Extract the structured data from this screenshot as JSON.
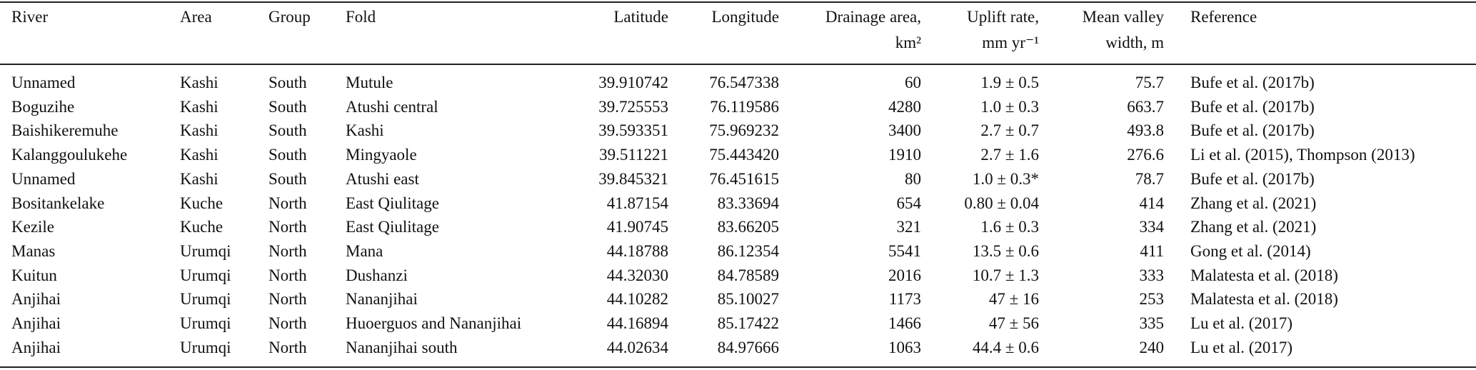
{
  "table": {
    "header": [
      [
        "River"
      ],
      [
        "Area"
      ],
      [
        "Group"
      ],
      [
        "Fold"
      ],
      [
        "Latitude"
      ],
      [
        "Longitude"
      ],
      [
        "Drainage area,",
        "km²"
      ],
      [
        "Uplift rate,",
        "mm yr⁻¹"
      ],
      [
        "Mean valley",
        "width, m"
      ],
      [
        "Reference"
      ]
    ],
    "rows": [
      [
        "Unnamed",
        "Kashi",
        "South",
        "Mutule",
        "39.910742",
        "76.547338",
        "60",
        "1.9 ± 0.5",
        "75.7",
        "Bufe et al. (2017b)"
      ],
      [
        "Boguzihe",
        "Kashi",
        "South",
        "Atushi central",
        "39.725553",
        "76.119586",
        "4280",
        "1.0 ± 0.3",
        "663.7",
        "Bufe et al. (2017b)"
      ],
      [
        "Baishikeremuhe",
        "Kashi",
        "South",
        "Kashi",
        "39.593351",
        "75.969232",
        "3400",
        "2.7 ± 0.7",
        "493.8",
        "Bufe et al. (2017b)"
      ],
      [
        "Kalanggoulukehe",
        "Kashi",
        "South",
        "Mingyaole",
        "39.511221",
        "75.443420",
        "1910",
        "2.7 ± 1.6",
        "276.6",
        "Li et al. (2015), Thompson (2013)"
      ],
      [
        "Unnamed",
        "Kashi",
        "South",
        "Atushi east",
        "39.845321",
        "76.451615",
        "80",
        "1.0 ± 0.3*",
        "78.7",
        "Bufe et al. (2017b)"
      ],
      [
        "Bositankelake",
        "Kuche",
        "North",
        "East Qiulitage",
        "41.87154",
        "83.33694",
        "654",
        "0.80 ± 0.04",
        "414",
        "Zhang et al. (2021)"
      ],
      [
        "Kezile",
        "Kuche",
        "North",
        "East Qiulitage",
        "41.90745",
        "83.66205",
        "321",
        "1.6 ± 0.3",
        "334",
        "Zhang et al. (2021)"
      ],
      [
        "Manas",
        "Urumqi",
        "North",
        "Mana",
        "44.18788",
        "86.12354",
        "5541",
        "13.5 ± 0.6",
        "411",
        "Gong et al. (2014)"
      ],
      [
        "Kuitun",
        "Urumqi",
        "North",
        "Dushanzi",
        "44.32030",
        "84.78589",
        "2016",
        "10.7 ± 1.3",
        "333",
        "Malatesta et al. (2018)"
      ],
      [
        "Anjihai",
        "Urumqi",
        "North",
        "Nananjihai",
        "44.10282",
        "85.10027",
        "1173",
        "47 ± 16",
        "253",
        "Malatesta et al. (2018)"
      ],
      [
        "Anjihai",
        "Urumqi",
        "North",
        "Huoerguos and Nananjihai",
        "44.16894",
        "85.17422",
        "1466",
        "47 ± 56",
        "335",
        "Lu et al. (2017)"
      ],
      [
        "Anjihai",
        "Urumqi",
        "North",
        "Nananjihai south",
        "44.02634",
        "84.97666",
        "1063",
        "44.4 ± 0.6",
        "240",
        "Lu et al. (2017)"
      ]
    ]
  }
}
